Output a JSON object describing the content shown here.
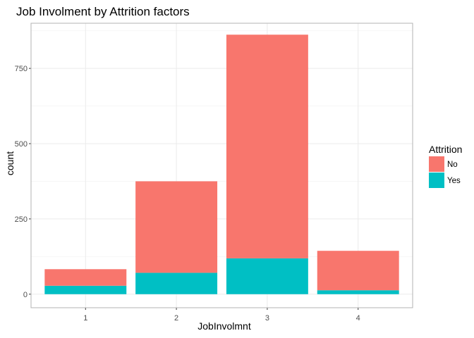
{
  "chart_data": {
    "type": "bar",
    "stacked": true,
    "title": "Job Involment by Attrition factors",
    "xlabel": "JobInvolmnt",
    "ylabel": "count",
    "categories": [
      "1",
      "2",
      "3",
      "4"
    ],
    "series": [
      {
        "name": "No",
        "color": "#F8766D",
        "values": [
          55,
          304,
          743,
          131
        ]
      },
      {
        "name": "Yes",
        "color": "#00BFC4",
        "values": [
          28,
          71,
          119,
          13
        ]
      }
    ],
    "yticks": [
      0,
      250,
      500,
      750
    ],
    "ylim": [
      -45,
      900
    ],
    "grid": true,
    "legend": {
      "title": "Attrition",
      "position": "right"
    }
  }
}
